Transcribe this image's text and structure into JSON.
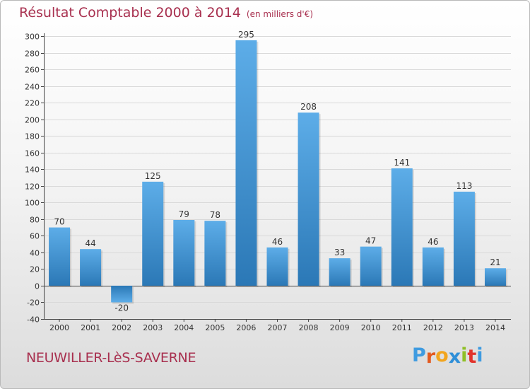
{
  "header": {
    "title": "Résultat Comptable 2000 à 2014",
    "unit": "(en milliers d'€)"
  },
  "footer": {
    "commune": "NEUWILLER-LèS-SAVERNE",
    "logo_letters": [
      "P",
      "r",
      "o",
      "x",
      "i",
      "t",
      "i"
    ]
  },
  "colors": {
    "title": "#a8304f",
    "bar_light": "#5dade8",
    "bar_dark": "#2b78b6",
    "logo": [
      "#3f9be0",
      "#e35a1f",
      "#f2a51d",
      "#2f8fd8",
      "#8fbf26",
      "#e2342d",
      "#3f9be0"
    ]
  },
  "chart_data": {
    "type": "bar",
    "title": "Résultat Comptable 2000 à 2014",
    "ylabel": "(en milliers d'€)",
    "categories": [
      "2000",
      "2001",
      "2002",
      "2003",
      "2004",
      "2005",
      "2006",
      "2007",
      "2008",
      "2009",
      "2010",
      "2011",
      "2012",
      "2013",
      "2014"
    ],
    "values": [
      70,
      44,
      -20,
      125,
      79,
      78,
      295,
      46,
      208,
      33,
      47,
      141,
      46,
      113,
      21
    ],
    "data_labels": [
      "70",
      "44",
      "-20",
      "125",
      "79",
      "78",
      "295",
      "46",
      "208",
      "33",
      "47",
      "141",
      "46",
      "113",
      "21"
    ],
    "ylim": [
      -40,
      300
    ],
    "yticks": [
      -40,
      -20,
      0,
      20,
      40,
      60,
      80,
      100,
      120,
      140,
      160,
      180,
      200,
      220,
      240,
      260,
      280,
      300
    ],
    "ytick_labels": [
      "-40",
      "-20",
      "0",
      "20",
      "40",
      "60",
      "80",
      "100",
      "120",
      "140",
      "160",
      "180",
      "200",
      "220",
      "240",
      "260",
      "280",
      "300"
    ],
    "grid": true,
    "legend": "none"
  }
}
